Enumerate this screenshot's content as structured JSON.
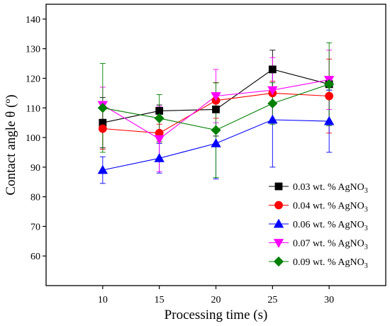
{
  "chart_data": {
    "type": "line",
    "xlabel": "Processing time (s)",
    "ylabel": "Contact angle θ (º)",
    "x": [
      10,
      15,
      20,
      25,
      30
    ],
    "xlim": [
      5,
      35
    ],
    "ylim": [
      50,
      145
    ],
    "xticks": [
      10,
      15,
      20,
      25,
      30
    ],
    "yticks": [
      60,
      70,
      80,
      90,
      100,
      110,
      120,
      130,
      140
    ],
    "grid": false,
    "legend_position": "bottom-right",
    "series": [
      {
        "name": "0.03 wt. % AgNO",
        "sub": "3",
        "color": "#000000",
        "marker": "square",
        "values": [
          105,
          109,
          109.5,
          123,
          118
        ],
        "errors": [
          8.5,
          2,
          9,
          6.5,
          2
        ]
      },
      {
        "name": "0.04 wt. % AgNO",
        "sub": "3",
        "color": "#ff0000",
        "marker": "circle",
        "values": [
          103,
          101.5,
          112.5,
          115,
          114
        ],
        "errors": [
          7,
          3,
          6,
          4,
          12.5
        ]
      },
      {
        "name": "0.06 wt. % AgNO",
        "sub": "3",
        "color": "#0000ff",
        "marker": "triangle-up",
        "values": [
          89,
          93,
          98,
          106,
          105.5
        ],
        "errors": [
          4.5,
          5,
          12,
          16,
          10.5
        ]
      },
      {
        "name": "0.07 wt. % AgNO",
        "sub": "3",
        "color": "#ff00ff",
        "marker": "triangle-down",
        "values": [
          111,
          99.5,
          114,
          116,
          119.5
        ],
        "errors": [
          6,
          11,
          9,
          11,
          10
        ]
      },
      {
        "name": "0.09 wt. % AgNO",
        "sub": "3",
        "color": "#008000",
        "marker": "diamond",
        "values": [
          110,
          106.5,
          102.5,
          111.5,
          118
        ],
        "errors": [
          15,
          8,
          16,
          7,
          14
        ]
      }
    ]
  }
}
